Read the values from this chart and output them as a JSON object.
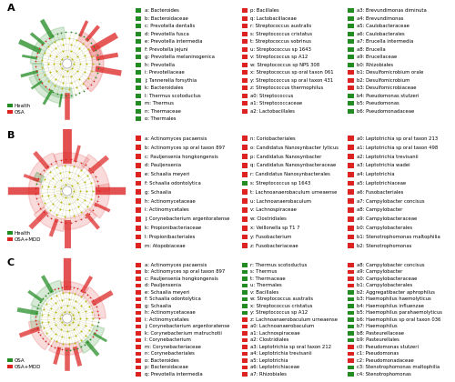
{
  "panel_A": {
    "title": "A",
    "legend": [
      {
        "color": "#dd2222",
        "label": "OSA"
      },
      {
        "color": "#228B22",
        "label": "Health"
      }
    ],
    "legend_items_col1": [
      {
        "color": "#228B22",
        "label": "a: Bacteroides"
      },
      {
        "color": "#228B22",
        "label": "b: Bacteroidaceae"
      },
      {
        "color": "#228B22",
        "label": "c: Prevotella_dentalis"
      },
      {
        "color": "#228B22",
        "label": "d: Prevotella_fusca"
      },
      {
        "color": "#228B22",
        "label": "e: Prevotella_intermedia"
      },
      {
        "color": "#228B22",
        "label": "f: Prevotella_jejuni"
      },
      {
        "color": "#228B22",
        "label": "g: Prevotella_melaninogenica"
      },
      {
        "color": "#228B22",
        "label": "h: Prevotella"
      },
      {
        "color": "#228B22",
        "label": "i: Prevotellaceae"
      },
      {
        "color": "#228B22",
        "label": "j: Tannerella_forsythia"
      },
      {
        "color": "#228B22",
        "label": "k: Bacteroidales"
      },
      {
        "color": "#228B22",
        "label": "l: Thermus_scotoductus"
      },
      {
        "color": "#228B22",
        "label": "m: Thermus"
      },
      {
        "color": "#228B22",
        "label": "n: Thermaceae"
      },
      {
        "color": "#228B22",
        "label": "o: Thermales"
      }
    ],
    "legend_items_col2": [
      {
        "color": "#dd2222",
        "label": "p: Bacillales"
      },
      {
        "color": "#dd2222",
        "label": "q: Lactobacillaceae"
      },
      {
        "color": "#dd2222",
        "label": "r: Streptococcus_australis"
      },
      {
        "color": "#dd2222",
        "label": "s: Streptococcus_cristatus"
      },
      {
        "color": "#dd2222",
        "label": "t: Streptococcus_sobrinus"
      },
      {
        "color": "#dd2222",
        "label": "u: Streptococcus_sp_1643"
      },
      {
        "color": "#dd2222",
        "label": "v: Streptococcus_sp_A12"
      },
      {
        "color": "#dd2222",
        "label": "w: Streptococcus_sp_NPS_308"
      },
      {
        "color": "#dd2222",
        "label": "x: Streptococcus_sp_oral_taxon_061"
      },
      {
        "color": "#dd2222",
        "label": "y: Streptococcus_sp_oral_taxon_431"
      },
      {
        "color": "#dd2222",
        "label": "z: Streptococcus_thermophilus"
      },
      {
        "color": "#dd2222",
        "label": "a0: Streptococcus"
      },
      {
        "color": "#dd2222",
        "label": "a1: Streptococcaceae"
      },
      {
        "color": "#dd2222",
        "label": "a2: Lactobacillales"
      }
    ],
    "legend_items_col3": [
      {
        "color": "#228B22",
        "label": "a3: Brevundimonas_diminuta"
      },
      {
        "color": "#228B22",
        "label": "a4: Brevundimonas"
      },
      {
        "color": "#228B22",
        "label": "a5: Caulobacteraceae"
      },
      {
        "color": "#228B22",
        "label": "a6: Caulobacterales"
      },
      {
        "color": "#228B22",
        "label": "a7: Brucella_intermedia"
      },
      {
        "color": "#228B22",
        "label": "a8: Brucella"
      },
      {
        "color": "#228B22",
        "label": "a9: Brucellaceae"
      },
      {
        "color": "#228B22",
        "label": "b0: Rhizobiales"
      },
      {
        "color": "#dd2222",
        "label": "b1: Desulfomicrobium_orale"
      },
      {
        "color": "#dd2222",
        "label": "b2: Desulfomicrobium"
      },
      {
        "color": "#dd2222",
        "label": "b3: Desulfomicrobiaceae"
      },
      {
        "color": "#228B22",
        "label": "b4: Pseudomonas_stutzeri"
      },
      {
        "color": "#228B22",
        "label": "b5: Pseudomonas"
      },
      {
        "color": "#228B22",
        "label": "b6: Pseudomonadaceae"
      }
    ]
  },
  "panel_B": {
    "title": "B",
    "legend": [
      {
        "color": "#dd2222",
        "label": "OSA+MDD"
      },
      {
        "color": "#228B22",
        "label": "Health"
      }
    ],
    "legend_items_col1": [
      {
        "color": "#dd2222",
        "label": "a: Actinomyces_pacaensis"
      },
      {
        "color": "#dd2222",
        "label": "b: Actinomyces_sp_oral_taxon_897"
      },
      {
        "color": "#dd2222",
        "label": "c: Pauljensenia_hongkongensis"
      },
      {
        "color": "#dd2222",
        "label": "d: Pauljensenia"
      },
      {
        "color": "#dd2222",
        "label": "e: Schaalia_meyeri"
      },
      {
        "color": "#dd2222",
        "label": "f: Schaalia_odontolytica"
      },
      {
        "color": "#dd2222",
        "label": "g: Schaalia"
      },
      {
        "color": "#dd2222",
        "label": "h: Actinomycetaceae"
      },
      {
        "color": "#dd2222",
        "label": "i: Actinomycetales"
      },
      {
        "color": "#dd2222",
        "label": "j: Corynebacterium_argentoratense"
      },
      {
        "color": "#dd2222",
        "label": "k: Propionibacteriaceae"
      },
      {
        "color": "#dd2222",
        "label": "l: Propionibacteriales"
      },
      {
        "color": "#dd2222",
        "label": "m: Atopobiaceae"
      }
    ],
    "legend_items_col2": [
      {
        "color": "#dd2222",
        "label": "n: Coriobacteriales"
      },
      {
        "color": "#dd2222",
        "label": "o: Candidatus_Nanosynbacter_lyticus"
      },
      {
        "color": "#dd2222",
        "label": "p: Candidatus_Nanosynbacter"
      },
      {
        "color": "#dd2222",
        "label": "q: Candidatus_Nanosynbacteraceae"
      },
      {
        "color": "#dd2222",
        "label": "r: Candidatus_Nanosynbacterales"
      },
      {
        "color": "#228B22",
        "label": "s: Streptococcus_sp_1643"
      },
      {
        "color": "#dd2222",
        "label": "t: Lachnoanaerobaculum_urneaense"
      },
      {
        "color": "#dd2222",
        "label": "u: Lachnoanaerobaculum"
      },
      {
        "color": "#dd2222",
        "label": "v: Lachnospiraceae"
      },
      {
        "color": "#dd2222",
        "label": "w: Clostridiales"
      },
      {
        "color": "#dd2222",
        "label": "x: Veillonella_sp_T1_7"
      },
      {
        "color": "#dd2222",
        "label": "y: Fusobacterium"
      },
      {
        "color": "#dd2222",
        "label": "z: Fusobacteriaceae"
      }
    ],
    "legend_items_col3": [
      {
        "color": "#dd2222",
        "label": "a0: Leptotrichia_sp_oral_taxon_213"
      },
      {
        "color": "#dd2222",
        "label": "a1: Leptotrichia_sp_oral_taxon_498"
      },
      {
        "color": "#dd2222",
        "label": "a2: Leptotrichia_trevisanii"
      },
      {
        "color": "#dd2222",
        "label": "a3: Leptotrichia_wadei"
      },
      {
        "color": "#dd2222",
        "label": "a4: Leptotrichia"
      },
      {
        "color": "#dd2222",
        "label": "a5: Leptotrichiaceae"
      },
      {
        "color": "#dd2222",
        "label": "a6: Fusobacteriales"
      },
      {
        "color": "#dd2222",
        "label": "a7: Campylobacter_concisus"
      },
      {
        "color": "#dd2222",
        "label": "a8: Campylobacter"
      },
      {
        "color": "#dd2222",
        "label": "a9: Campylobacteraceae"
      },
      {
        "color": "#dd2222",
        "label": "b0: Campylobacterales"
      },
      {
        "color": "#dd2222",
        "label": "b1: Stenotrophomonas_maltophilia"
      },
      {
        "color": "#dd2222",
        "label": "b2: Stenotrophomonas"
      }
    ]
  },
  "panel_C": {
    "title": "C",
    "legend": [
      {
        "color": "#dd2222",
        "label": "OSA+MDD"
      },
      {
        "color": "#228B22",
        "label": "OSA"
      }
    ],
    "legend_items_col1": [
      {
        "color": "#dd2222",
        "label": "a: Actinomyces_pacaensis"
      },
      {
        "color": "#dd2222",
        "label": "b: Actinomyces_sp_oral_taxon_897"
      },
      {
        "color": "#dd2222",
        "label": "c: Pauljensenia_hongkongensis"
      },
      {
        "color": "#dd2222",
        "label": "d: Pauljensenia"
      },
      {
        "color": "#dd2222",
        "label": "e: Schaalia_meyeri"
      },
      {
        "color": "#dd2222",
        "label": "f: Schaalia_odontolytica"
      },
      {
        "color": "#dd2222",
        "label": "g: Schaalia"
      },
      {
        "color": "#dd2222",
        "label": "h: Actinomycetaceae"
      },
      {
        "color": "#dd2222",
        "label": "i: Actinomycetales"
      },
      {
        "color": "#dd2222",
        "label": "j: Corynebacterium_argentoratense"
      },
      {
        "color": "#dd2222",
        "label": "k: Corynebacterium_matruchotii"
      },
      {
        "color": "#dd2222",
        "label": "l: Corynebacterium"
      },
      {
        "color": "#dd2222",
        "label": "m: Corynebacteriaceae"
      },
      {
        "color": "#dd2222",
        "label": "n: Corynebacteriales"
      },
      {
        "color": "#dd2222",
        "label": "o: Bacteroides"
      },
      {
        "color": "#dd2222",
        "label": "p: Bacteroidaceae"
      },
      {
        "color": "#dd2222",
        "label": "q: Prevotella_intermedia"
      }
    ],
    "legend_items_col2": [
      {
        "color": "#228B22",
        "label": "r: Thermus_scotoductus"
      },
      {
        "color": "#228B22",
        "label": "s: Thermus"
      },
      {
        "color": "#228B22",
        "label": "t: Thermaceae"
      },
      {
        "color": "#228B22",
        "label": "u: Thermales"
      },
      {
        "color": "#228B22",
        "label": "v: Bacillales"
      },
      {
        "color": "#228B22",
        "label": "w: Streptococcus_australis"
      },
      {
        "color": "#228B22",
        "label": "x: Streptococcus_cristatus"
      },
      {
        "color": "#228B22",
        "label": "y: Streptococcus_sp_A12"
      },
      {
        "color": "#dd2222",
        "label": "z: Lachnoanaerobaculum_urneaense"
      },
      {
        "color": "#dd2222",
        "label": "a0: Lachnoanaerobaculum"
      },
      {
        "color": "#dd2222",
        "label": "a1: Lachnospiraceae"
      },
      {
        "color": "#dd2222",
        "label": "a2: Clostridiales"
      },
      {
        "color": "#dd2222",
        "label": "a3: Leptotrichia_sp_oral_taxon_212"
      },
      {
        "color": "#dd2222",
        "label": "a4: Leptotrichia_trevisanii"
      },
      {
        "color": "#dd2222",
        "label": "a5: Leptotrichia"
      },
      {
        "color": "#dd2222",
        "label": "a6: Leptotrichiaceae"
      },
      {
        "color": "#dd2222",
        "label": "a7: Rhizobiales"
      }
    ],
    "legend_items_col3": [
      {
        "color": "#dd2222",
        "label": "a8: Campylobacter_concisus"
      },
      {
        "color": "#dd2222",
        "label": "a9: Campylobacter"
      },
      {
        "color": "#dd2222",
        "label": "b0: Campylobacteraceae"
      },
      {
        "color": "#dd2222",
        "label": "b1: Campylobacterales"
      },
      {
        "color": "#228B22",
        "label": "b2: Aggregatibacter_aphrophilus"
      },
      {
        "color": "#228B22",
        "label": "b3: Haemophilus_haemolyticus"
      },
      {
        "color": "#228B22",
        "label": "b4: Haemophilus_influenzae"
      },
      {
        "color": "#228B22",
        "label": "b5: Haemophilus_parahaemolyticus"
      },
      {
        "color": "#228B22",
        "label": "b6: Haemophilus_sp_oral_taxon_036"
      },
      {
        "color": "#228B22",
        "label": "b7: Haemophilus"
      },
      {
        "color": "#228B22",
        "label": "b8: Pasteurellaceae"
      },
      {
        "color": "#228B22",
        "label": "b9: Pasteurellales"
      },
      {
        "color": "#dd2222",
        "label": "c0: Pseudomonas_stutzeri"
      },
      {
        "color": "#dd2222",
        "label": "c1: Pseudomonas"
      },
      {
        "color": "#dd2222",
        "label": "c2: Pseudomonadaceae"
      },
      {
        "color": "#228B22",
        "label": "c3: Stenotrophomonas_maltophilia"
      },
      {
        "color": "#228B22",
        "label": "c4: Stenotrophomonas"
      }
    ]
  },
  "bg_color": "#ffffff",
  "legend_font_size": 3.8,
  "panel_label_size": 8,
  "clado_legend_font_size": 4.0
}
